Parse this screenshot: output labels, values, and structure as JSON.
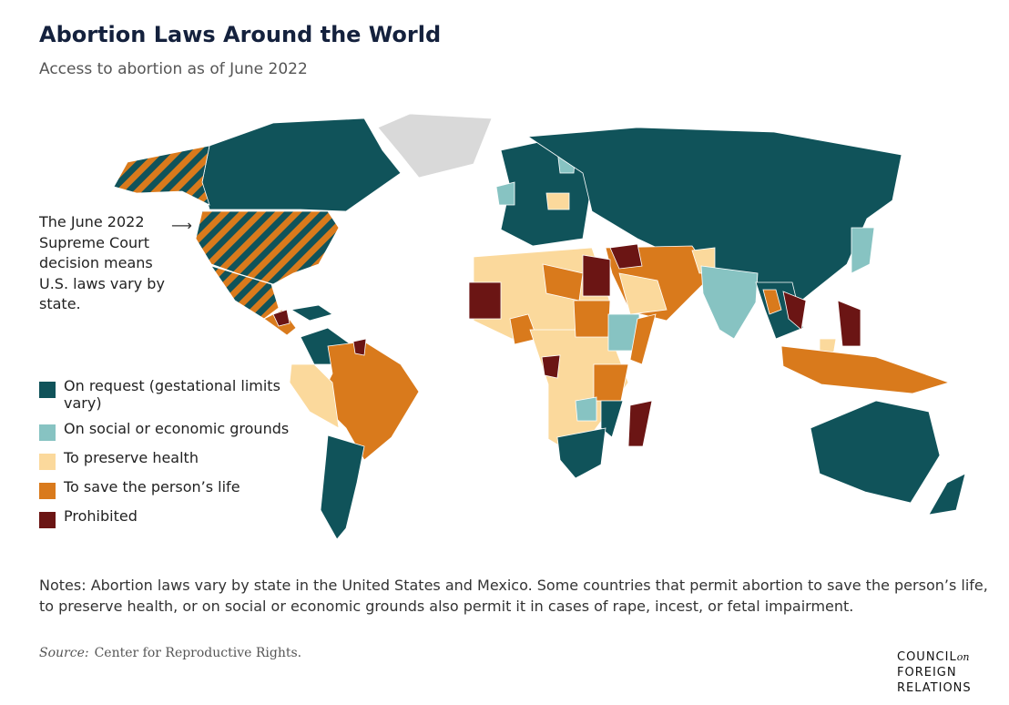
{
  "header": {
    "title": "Abortion Laws Around the World",
    "subtitle": "Access to abortion as of June 2022"
  },
  "annotation": [
    "The June 2022",
    "Supreme Court",
    "decision means",
    "U.S. laws vary by",
    "state."
  ],
  "legend": [
    {
      "label": "On request (gestational limits vary)",
      "color": "#10535a"
    },
    {
      "label": "On social or economic grounds",
      "color": "#87c3c2"
    },
    {
      "label": "To preserve health",
      "color": "#fbd99c"
    },
    {
      "label": "To save the person’s life",
      "color": "#d97a1c"
    },
    {
      "label": "Prohibited",
      "color": "#6b1514"
    }
  ],
  "no_data_color": "#d9d9d9",
  "notes": "Notes: Abortion laws vary by state in the United States and Mexico. Some countries that permit abortion to save the person’s life, to preserve health, or on social or economic grounds also permit it in cases of rape, incest, or fetal impairment.",
  "source": {
    "label": "Source:",
    "text": "Center for Reproductive Rights."
  },
  "logo": {
    "line1": "COUNCIL",
    "small": "on",
    "line2": "FOREIGN",
    "line3": "RELATIONS"
  }
}
